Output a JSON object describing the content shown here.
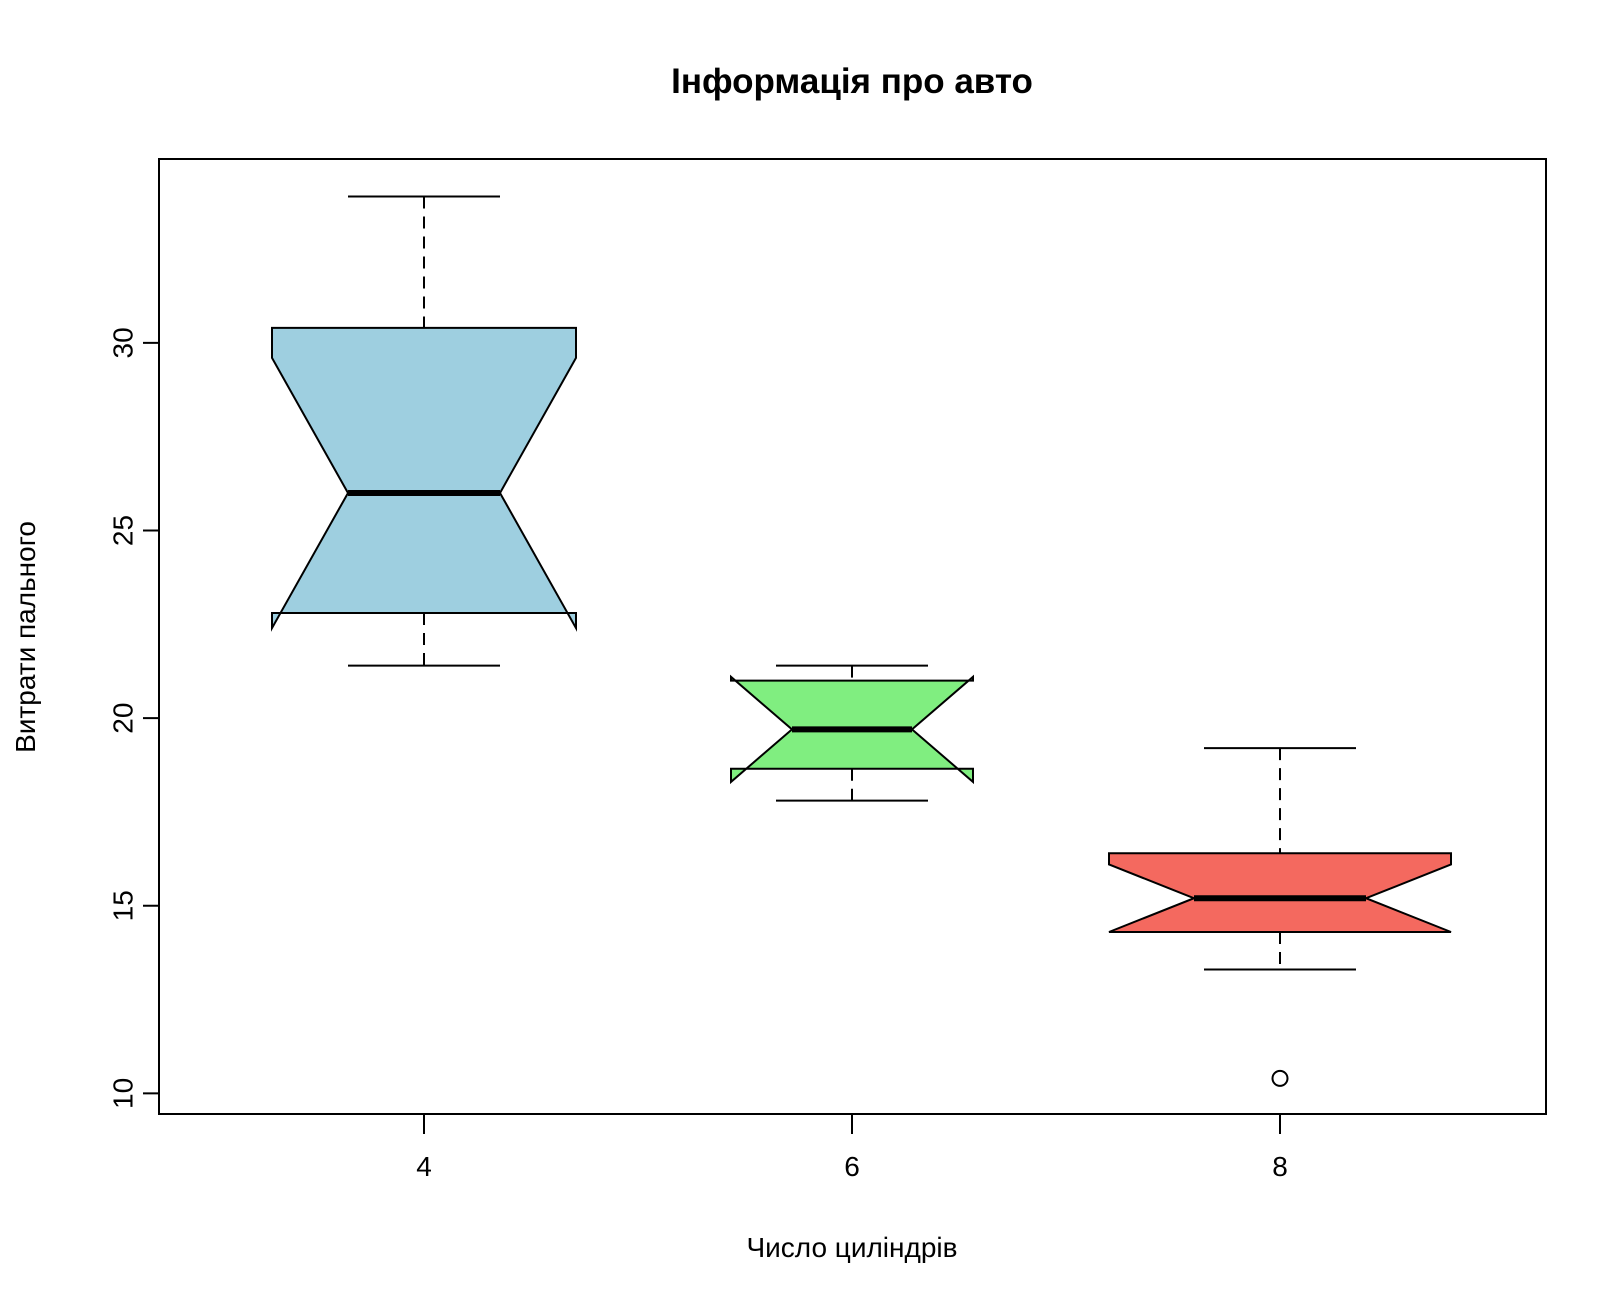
{
  "chart_data": {
    "type": "boxplot",
    "title": "Інформація про авто",
    "xlabel": "Число циліндрів",
    "ylabel": "Витрати пального",
    "notched": true,
    "ylim": [
      9.45,
      34.9
    ],
    "yticks": [
      10,
      15,
      20,
      25,
      30
    ],
    "categories": [
      "4",
      "6",
      "8"
    ],
    "boxes": [
      {
        "category": "4",
        "color": "#9ecfe0",
        "whisker_low": 21.4,
        "q1": 22.8,
        "median": 26.0,
        "q3": 30.4,
        "whisker_high": 33.9,
        "notch_low": 22.4,
        "notch_high": 29.6,
        "outliers": []
      },
      {
        "category": "6",
        "color": "#80ee80",
        "whisker_low": 17.8,
        "q1": 18.65,
        "median": 19.7,
        "q3": 21.0,
        "whisker_high": 21.4,
        "notch_low": 18.3,
        "notch_high": 21.1,
        "outliers": []
      },
      {
        "category": "8",
        "color": "#f4695f",
        "whisker_low": 13.3,
        "q1": 14.3,
        "median": 15.2,
        "q3": 16.4,
        "whisker_high": 19.2,
        "notch_low": 14.3,
        "notch_high": 16.1,
        "outliers": [
          10.4
        ]
      }
    ],
    "grid": false,
    "legend": "none"
  }
}
